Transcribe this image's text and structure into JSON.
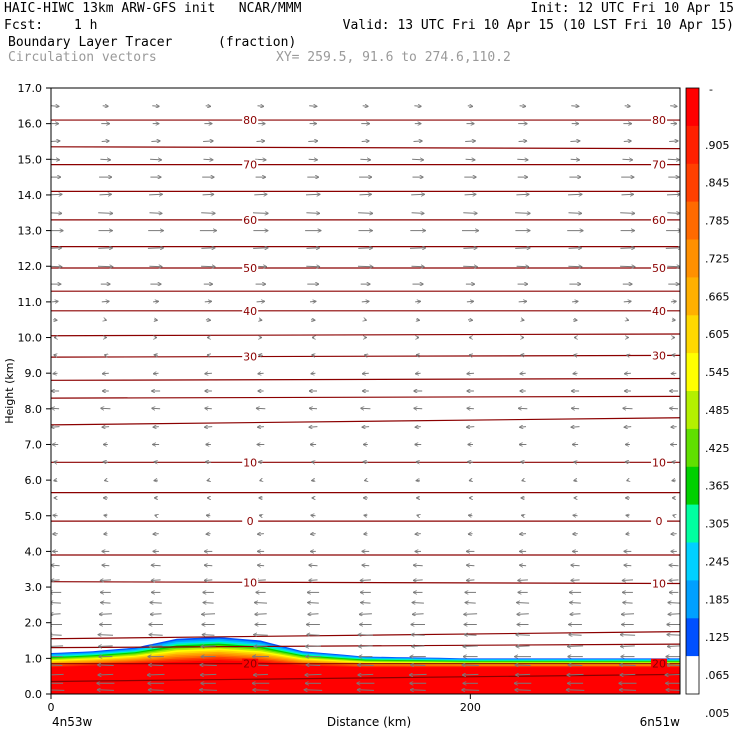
{
  "header": {
    "model_line": "HAIC-HIWC 13km ARW-GFS init   NCAR/MMM",
    "init_line": "Init: 12 UTC Fri 10 Apr 15",
    "fcst_label": "Fcst:",
    "fcst_value": "1 h",
    "valid_line": "Valid: 13 UTC Fri 10 Apr 15 (10 LST Fri 10 Apr 15)",
    "field_name": "Boundary Layer Tracer",
    "field_units": "(fraction)",
    "vector_label": "Circulation vectors",
    "xy_label": "XY= 259.5, 91.6 to 274.6,110.2"
  },
  "chart_data": {
    "type": "heatmap",
    "xlabel": "Distance (km)",
    "ylabel": "Height (km)",
    "xlim": [
      0,
      300
    ],
    "ylim": [
      0,
      17
    ],
    "xticks": [
      {
        "value": 0,
        "label": "0"
      },
      {
        "value": 200,
        "label": "200"
      }
    ],
    "yticks": [
      0,
      1,
      2,
      3,
      4,
      5,
      6,
      7,
      8,
      9,
      10,
      11,
      12,
      13,
      14,
      15,
      16,
      17
    ],
    "x_endpoints": {
      "left": "4n53w",
      "right": "6n51w"
    },
    "colorbar": {
      "top_label": "-",
      "labels": [
        ".905",
        ".845",
        ".785",
        ".725",
        ".665",
        ".605",
        ".545",
        ".485",
        ".425",
        ".365",
        ".305",
        ".245",
        ".185",
        ".125",
        ".065",
        ".005"
      ],
      "colors": [
        "#ff0000",
        "#ff2000",
        "#ff4000",
        "#ff6a00",
        "#ff9000",
        "#ffb000",
        "#ffd800",
        "#ffff00",
        "#b4f000",
        "#60e000",
        "#00d000",
        "#00ffa0",
        "#00d0ff",
        "#00a0ff",
        "#0050ff",
        "#ffffff"
      ]
    },
    "tracer_field": {
      "profile_x": [
        0,
        20,
        40,
        60,
        80,
        100,
        120,
        150,
        200,
        250,
        300
      ],
      "profile_top": [
        1.15,
        1.2,
        1.3,
        1.55,
        1.6,
        1.5,
        1.2,
        1.05,
        1.0,
        1.0,
        1.0
      ],
      "red_top": [
        0.75,
        0.8,
        0.85,
        0.9,
        0.95,
        0.9,
        0.8,
        0.75,
        0.75,
        0.75,
        0.75
      ]
    },
    "contour_lines": [
      {
        "level": "80",
        "y_left": 16.1,
        "y_right": 16.1,
        "show_label": true
      },
      {
        "level": "",
        "y_left": 15.35,
        "y_right": 15.3,
        "show_label": false
      },
      {
        "level": "70",
        "y_left": 14.85,
        "y_right": 14.85,
        "show_label": true
      },
      {
        "level": "",
        "y_left": 14.1,
        "y_right": 14.1,
        "show_label": false
      },
      {
        "level": "60",
        "y_left": 13.3,
        "y_right": 13.3,
        "show_label": true
      },
      {
        "level": "",
        "y_left": 12.55,
        "y_right": 12.55,
        "show_label": false
      },
      {
        "level": "50",
        "y_left": 11.95,
        "y_right": 11.95,
        "show_label": true
      },
      {
        "level": "",
        "y_left": 11.3,
        "y_right": 11.3,
        "show_label": false
      },
      {
        "level": "40",
        "y_left": 10.75,
        "y_right": 10.75,
        "show_label": true
      },
      {
        "level": "",
        "y_left": 10.05,
        "y_right": 10.1,
        "show_label": false
      },
      {
        "level": "30",
        "y_left": 9.45,
        "y_right": 9.5,
        "show_label": true
      },
      {
        "level": "",
        "y_left": 8.8,
        "y_right": 8.85,
        "show_label": false
      },
      {
        "level": "",
        "y_left": 8.3,
        "y_right": 8.35,
        "show_label": false
      },
      {
        "level": "",
        "y_left": 7.55,
        "y_right": 7.75,
        "show_label": false
      },
      {
        "level": "10",
        "y_left": 6.5,
        "y_right": 6.5,
        "show_label": true
      },
      {
        "level": "",
        "y_left": 5.65,
        "y_right": 5.65,
        "show_label": false
      },
      {
        "level": "0",
        "y_left": 4.85,
        "y_right": 4.85,
        "show_label": true
      },
      {
        "level": "",
        "y_left": 3.9,
        "y_right": 3.9,
        "show_label": false
      },
      {
        "level": "10",
        "y_left": 3.15,
        "y_right": 3.1,
        "show_label": true
      },
      {
        "level": "",
        "y_left": 1.55,
        "y_right": 1.75,
        "show_label": false
      },
      {
        "level": "",
        "y_left": 1.3,
        "y_right": 1.4,
        "show_label": false
      },
      {
        "level": "20",
        "y_left": 0.85,
        "y_right": 0.85,
        "show_label": true
      },
      {
        "level": "",
        "y_left": 0.35,
        "y_right": 0.55,
        "show_label": false
      }
    ],
    "contour_label_x": [
      95,
      290
    ],
    "vectors": {
      "columns_x": [
        2,
        26,
        50,
        75,
        100,
        125,
        150,
        175,
        200,
        225,
        250,
        275,
        297
      ],
      "heights": [
        0.1,
        0.3,
        0.55,
        0.8,
        1.05,
        1.35,
        1.65,
        1.95,
        2.25,
        2.55,
        2.85,
        3.2,
        3.6,
        4.0,
        4.5,
        5.0,
        5.5,
        6.0,
        6.5,
        7.0,
        7.5,
        8.0,
        8.5,
        9.0,
        9.5,
        10.0,
        10.5,
        11.0,
        11.5,
        12.0,
        12.5,
        13.0,
        13.5,
        14.0,
        14.5,
        15.0,
        15.5,
        16.0,
        16.5
      ],
      "u_profile_h": [
        0,
        1,
        2,
        3,
        4,
        5,
        6,
        7,
        8,
        9,
        10,
        11,
        12,
        13,
        14,
        15,
        16,
        17
      ],
      "u_profile_u": [
        -1.0,
        -0.9,
        -0.75,
        -0.6,
        -0.4,
        -0.2,
        -0.15,
        -0.35,
        -0.5,
        -0.35,
        0.0,
        0.4,
        0.8,
        0.9,
        0.75,
        0.6,
        0.45,
        0.3
      ],
      "color": "#7a7a7a"
    },
    "colors": {
      "contour": "#8b0000",
      "frame": "#000000"
    }
  }
}
